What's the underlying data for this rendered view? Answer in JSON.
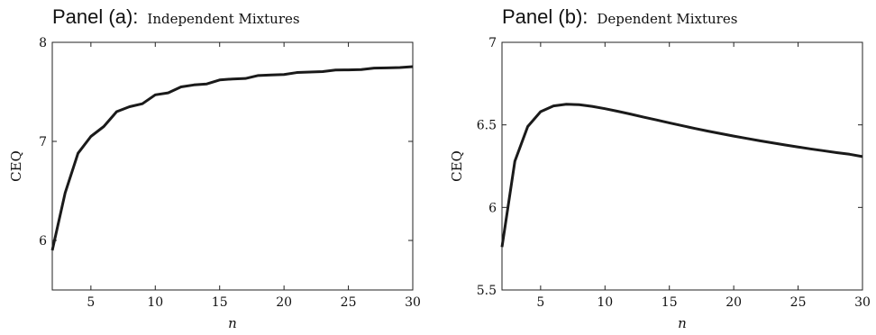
{
  "chart_data": [
    {
      "type": "line",
      "title_prefix": "Panel (a):",
      "title": "Independent Mixtures",
      "xlabel": "n",
      "ylabel": "CEQ",
      "xlim": [
        2,
        30
      ],
      "ylim": [
        5.5,
        8
      ],
      "xticks": [
        5,
        10,
        15,
        20,
        25,
        30
      ],
      "yticks": [
        6,
        7,
        8
      ],
      "x": [
        2,
        3,
        4,
        5,
        6,
        7,
        8,
        9,
        10,
        11,
        12,
        13,
        14,
        15,
        16,
        17,
        18,
        19,
        20,
        21,
        22,
        23,
        24,
        25,
        26,
        27,
        28,
        29,
        30
      ],
      "values": [
        5.9,
        6.48,
        6.88,
        7.05,
        7.15,
        7.3,
        7.35,
        7.38,
        7.47,
        7.49,
        7.55,
        7.57,
        7.58,
        7.62,
        7.63,
        7.635,
        7.665,
        7.67,
        7.675,
        7.695,
        7.7,
        7.705,
        7.72,
        7.722,
        7.725,
        7.74,
        7.742,
        7.745,
        7.755
      ]
    },
    {
      "type": "line",
      "title_prefix": "Panel (b):",
      "title": "Dependent Mixtures",
      "xlabel": "n",
      "ylabel": "CEQ",
      "xlim": [
        2,
        30
      ],
      "ylim": [
        5.5,
        7
      ],
      "xticks": [
        5,
        10,
        15,
        20,
        25,
        30
      ],
      "yticks": [
        5.5,
        6,
        6.5,
        7
      ],
      "x": [
        2,
        3,
        4,
        5,
        6,
        7,
        8,
        9,
        10,
        11,
        12,
        13,
        14,
        15,
        16,
        17,
        18,
        19,
        20,
        21,
        22,
        23,
        24,
        25,
        26,
        27,
        28,
        29,
        30
      ],
      "values": [
        5.76,
        6.28,
        6.49,
        6.58,
        6.615,
        6.625,
        6.622,
        6.612,
        6.598,
        6.582,
        6.565,
        6.547,
        6.53,
        6.512,
        6.495,
        6.478,
        6.462,
        6.447,
        6.432,
        6.418,
        6.404,
        6.391,
        6.378,
        6.366,
        6.354,
        6.343,
        6.332,
        6.322,
        6.308
      ]
    }
  ]
}
